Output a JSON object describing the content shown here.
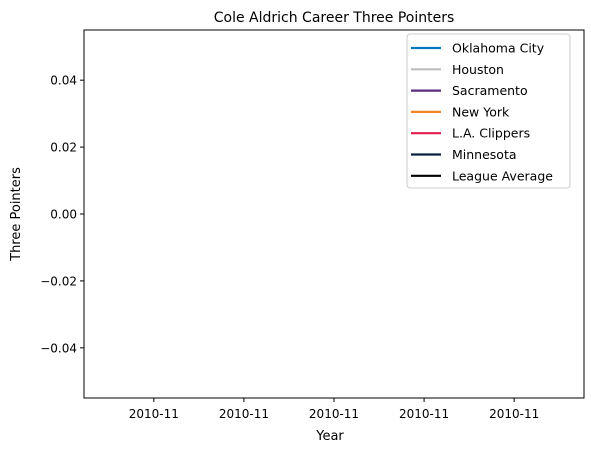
{
  "chart_data": {
    "type": "line",
    "title": "Cole Aldrich Career Three Pointers",
    "xlabel": "Year",
    "ylabel": "Three Pointers",
    "x_tick_labels": [
      "2010-11",
      "2010-11",
      "2010-11",
      "2010-11",
      "2010-11"
    ],
    "y_ticks": [
      -0.04,
      -0.02,
      0.0,
      0.02,
      0.04
    ],
    "y_tick_labels": [
      "−0.04",
      "−0.02",
      "0.00",
      "0.02",
      "0.04"
    ],
    "ylim": [
      -0.055,
      0.055
    ],
    "grid": false,
    "legend_position": "top-right",
    "series": [
      {
        "name": "Oklahoma City",
        "color": "#007AC1",
        "x": [],
        "y": []
      },
      {
        "name": "Houston",
        "color": "#BEBEBE",
        "x": [],
        "y": []
      },
      {
        "name": "Sacramento",
        "color": "#5A2D81",
        "x": [],
        "y": []
      },
      {
        "name": "New York",
        "color": "#F58426",
        "x": [],
        "y": []
      },
      {
        "name": "L.A. Clippers",
        "color": "#E31B4F",
        "x": [],
        "y": []
      },
      {
        "name": "Minnesota",
        "color": "#0C2340",
        "x": [],
        "y": []
      },
      {
        "name": "League Average",
        "color": "#000000",
        "x": [],
        "y": []
      }
    ]
  }
}
